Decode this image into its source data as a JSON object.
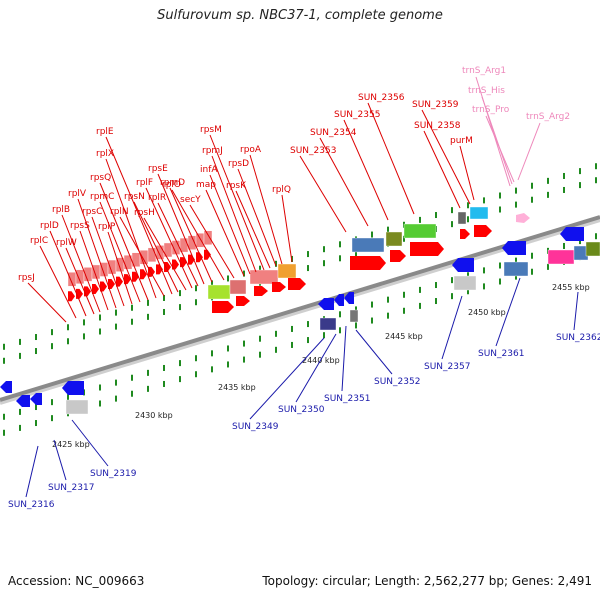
{
  "title": "Sulfurovum sp. NBC37-1, complete genome",
  "footer": {
    "accession": "Accession: NC_009663",
    "summary": "Topology: circular; Length: 2,562,277 bp; Genes: 2,491"
  },
  "colors": {
    "backbone": "#8a8a8a",
    "forward_label": "#dd0000",
    "reverse_label": "#1a1aaa",
    "trna_label": "#ee88bb",
    "ticks": "#1f8a1f",
    "ribosomal_block": "#f08080",
    "forward_gene": "#ff0000",
    "reverse_gene": "#1010ee"
  },
  "scale_labels": [
    "2425 kbp",
    "2430 kbp",
    "2435 kbp",
    "2440 kbp",
    "2445 kbp",
    "2450 kbp",
    "2455 kbp"
  ],
  "forward_labels": [
    "rpsJ",
    "rplC",
    "rplD",
    "rplW",
    "rplB",
    "rpsS",
    "rplV",
    "rpsC",
    "rplP",
    "rpmC",
    "rpsQ",
    "rplX",
    "rplN",
    "rplE",
    "rpsN",
    "rpsH",
    "rplF",
    "rplR",
    "rpsE",
    "rpmD",
    "rplO",
    "secY",
    "map",
    "infA",
    "rpmJ",
    "rpsM",
    "rpsK",
    "rpsD",
    "rpoA",
    "rplQ",
    "SUN_2353",
    "SUN_2354",
    "SUN_2355",
    "SUN_2356",
    "SUN_2358",
    "SUN_2359",
    "purM"
  ],
  "trna_labels": [
    "trnS_Arg1",
    "trnS_His",
    "trnS_Pro",
    "trnS_Arg2"
  ],
  "reverse_labels": [
    "SUN_2316",
    "SUN_2317",
    "SUN_2319",
    "SUN_2349",
    "SUN_2350",
    "SUN_2351",
    "SUN_2352",
    "SUN_2357",
    "SUN_2361",
    "SUN_2362"
  ]
}
